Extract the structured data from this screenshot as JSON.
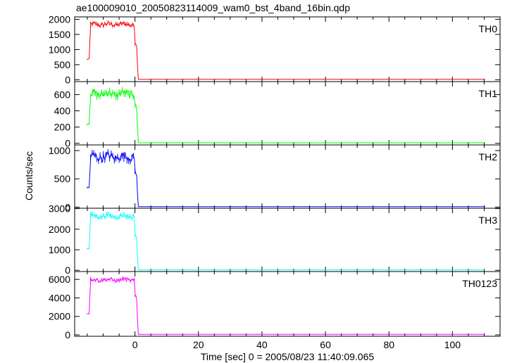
{
  "title": "ae100009010_20050823114009_wam0_bst_4band_16bin.qdp",
  "chart_data": {
    "type": "line",
    "xlabel": "Time [sec] 0 = 2005/08/23 11:40:09.065",
    "ylabel": "Counts/sec",
    "xlim": [
      -19,
      115
    ],
    "xticks": [
      0,
      20,
      40,
      60,
      80,
      100
    ],
    "grid": false,
    "panels": [
      {
        "name": "TH0",
        "color": "#ff0000",
        "ylim": [
          -60,
          2080
        ],
        "yticks": [
          0,
          500,
          1000,
          1500,
          2000
        ],
        "pre_level": 680,
        "burst_level": 1830,
        "burst_amp": 70,
        "end_level": 1200,
        "post_level": 15
      },
      {
        "name": "TH1",
        "color": "#00ff00",
        "ylim": [
          -20,
          760
        ],
        "yticks": [
          0,
          200,
          400,
          600
        ],
        "pre_level": 240,
        "burst_level": 610,
        "burst_amp": 45,
        "end_level": 480,
        "post_level": 6
      },
      {
        "name": "TH2",
        "color": "#0000ff",
        "ylim": [
          -20,
          1100
        ],
        "yticks": [
          0,
          500,
          1000
        ],
        "pre_level": 340,
        "burst_level": 890,
        "burst_amp": 70,
        "end_level": 620,
        "post_level": 8
      },
      {
        "name": "TH3",
        "color": "#00ffff",
        "ylim": [
          -60,
          3020
        ],
        "yticks": [
          0,
          1000,
          2000,
          3000
        ],
        "pre_level": 1050,
        "burst_level": 2640,
        "burst_amp": 110,
        "end_level": 1700,
        "post_level": 20
      },
      {
        "name": "TH0123",
        "color": "#ff00ff",
        "ylim": [
          -150,
          6850
        ],
        "yticks": [
          0,
          2000,
          4000,
          6000
        ],
        "pre_level": 2300,
        "burst_level": 5950,
        "burst_amp": 180,
        "end_level": 4200,
        "post_level": 60
      }
    ]
  }
}
